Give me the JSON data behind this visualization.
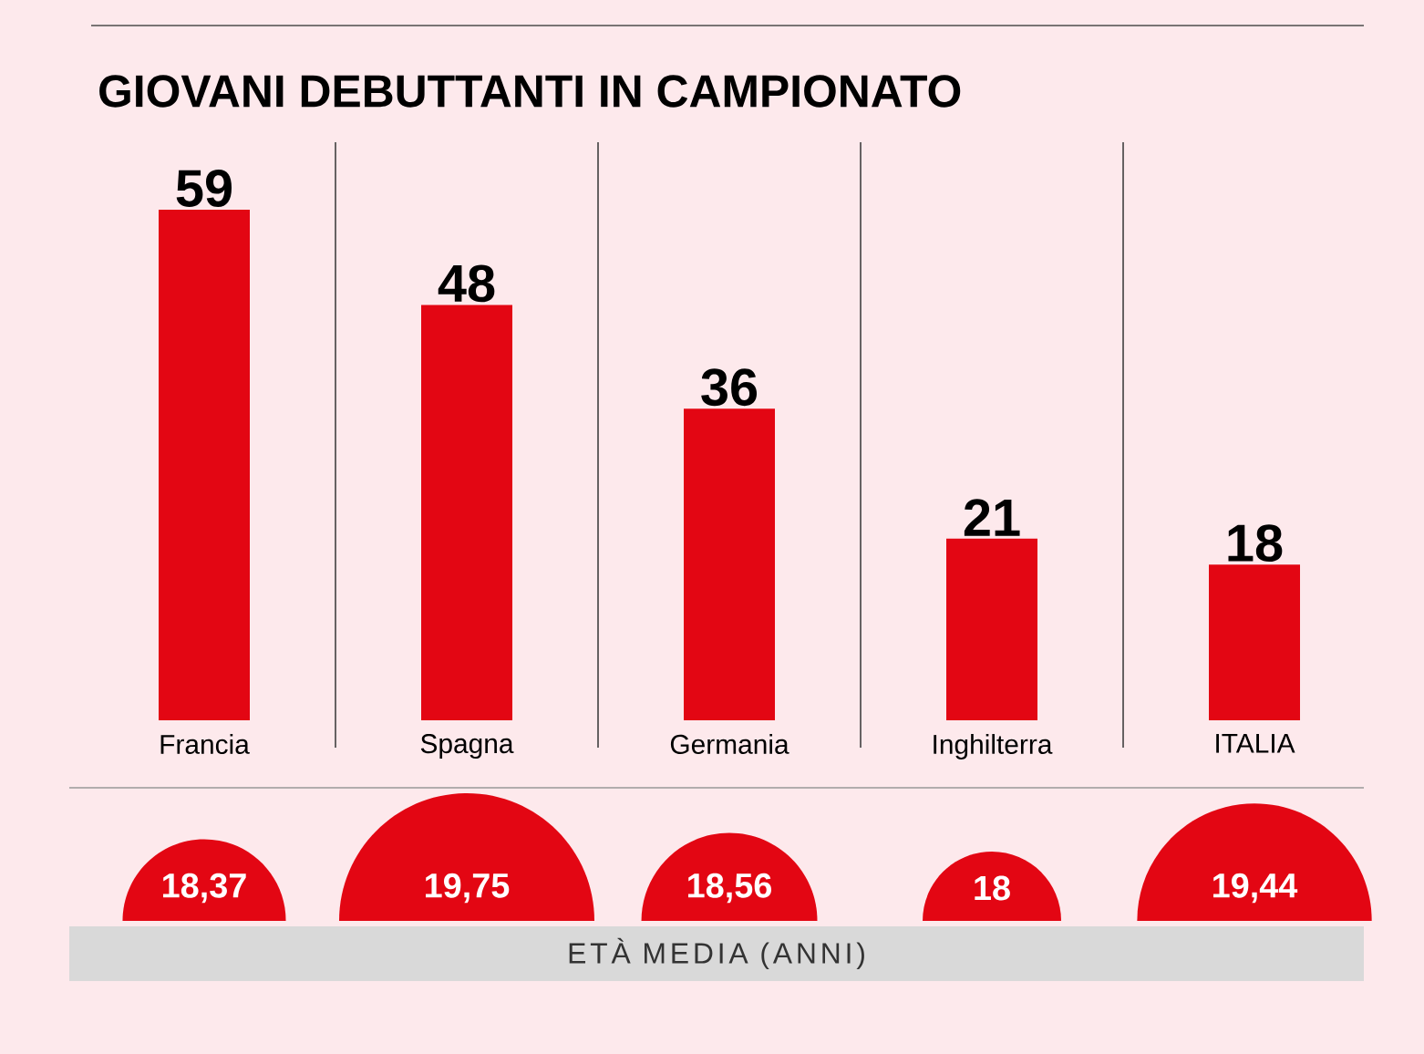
{
  "chart_data": [
    {
      "type": "bar",
      "title": "GIOVANI DEBUTTANTI IN CAMPIONATO",
      "categories": [
        "Francia",
        "Spagna",
        "Germania",
        "Inghilterra",
        "ITALIA"
      ],
      "values": [
        59,
        48,
        36,
        21,
        18
      ],
      "color": "#e30613",
      "data_labels": true
    },
    {
      "type": "other",
      "categories": [
        null,
        null,
        null,
        null,
        null
      ],
      "values": [
        18.37,
        19.75,
        18.56,
        18,
        19.44
      ],
      "value_labels": [
        "18,37",
        "19,75",
        "18,56",
        "18",
        "19,44"
      ],
      "color": "#e30613",
      "xlabel": "ETÀ MEDIA (ANNI)"
    }
  ]
}
